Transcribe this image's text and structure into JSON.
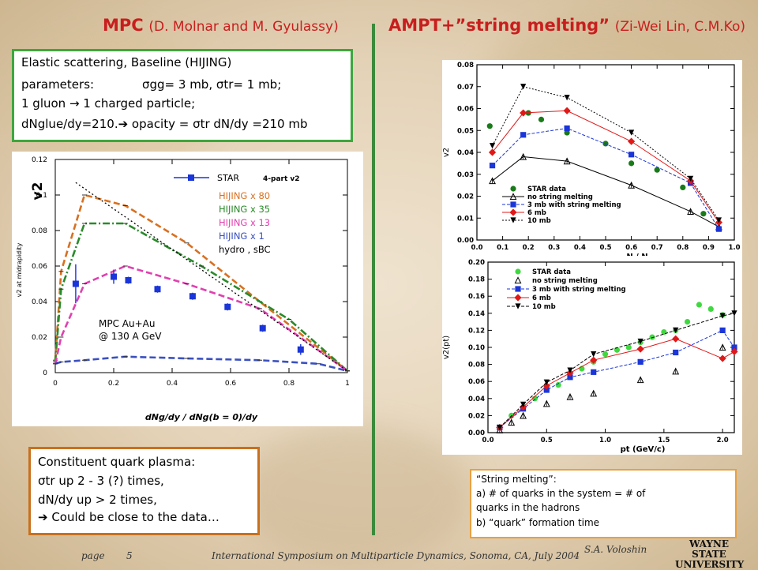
{
  "left_title": {
    "main": "MPC",
    "sub": "(D. Molnar and M. Gyulassy)"
  },
  "right_title": {
    "main": "AMPT+”string melting”",
    "sub": "(Zi-Wei Lin, C.M.Ko)"
  },
  "colors": {
    "title_red": "#c81e1e",
    "divider_green": "#3c8a3c",
    "box_green": "#3ea63e",
    "box_orange": "#c8701e",
    "box_note": "#e8a040"
  },
  "mpc_box": {
    "line1": "Elastic scattering, Baseline (HIJING)",
    "line2_a": "parameters:",
    "line2_b": "σgg= 3 mb, σtr= 1 mb;",
    "line3": "1 gluon → 1 charged particle;",
    "line4": "dNglue/dy=210.➔ opacity = σtr dN/dy =210 mb"
  },
  "cqp_box": {
    "line1": "Constituent quark plasma:",
    "line2": "σtr up 2 - 3 (?) times,",
    "line3": "dN/dy up > 2 times,",
    "line4": "➔ Could be close to the data…"
  },
  "sm_box": {
    "line1": "“String melting”:",
    "line2": "a) # of quarks in the system  =  # of",
    "line3": "quarks in the hadrons",
    "line4": " b) “quark” formation time"
  },
  "footer": {
    "page_label": "page",
    "page_num": "5",
    "conference": "International Symposium on Multiparticle Dynamics, Sonoma, CA, July 2004",
    "author": "S.A. Voloshin",
    "logo_line1": "WAYNE STATE",
    "logo_line2": "UNIVERSITY"
  },
  "chart_data": [
    {
      "type": "line",
      "ylabel": "v2 at midrapidity",
      "ylabel_big": "v2",
      "xlabel": "dNg/dy / dNg(b = 0)/dy",
      "xlim": [
        0,
        1
      ],
      "ylim": [
        0,
        0.12
      ],
      "x_ticks": [
        "0",
        "0.2",
        "0.4",
        "0.6",
        "0.8",
        "1"
      ],
      "y_ticks": [
        "0",
        "0.02",
        "0.04",
        "0.06",
        "0.08",
        "0.1",
        "0.12"
      ],
      "annotation_line1": "MPC Au+Au",
      "annotation_line2": "@ 130 A GeV",
      "legend": {
        "star_label": "STAR",
        "star_note": "4-part v2",
        "entries": [
          {
            "label": "HIJING x 80",
            "color": "#d87020"
          },
          {
            "label": "HIJING x 35",
            "color": "#2a8a2a"
          },
          {
            "label": "HIJING x 13",
            "color": "#e040b0"
          },
          {
            "label": "HIJING x 1",
            "color": "#3a50c0"
          },
          {
            "label": "hydro , sBC",
            "color": "#000000"
          }
        ]
      },
      "series": [
        {
          "name": "HIJING x 80",
          "color": "#d87020",
          "style": "dash",
          "x": [
            0,
            0.02,
            0.1,
            0.24,
            0.45,
            0.7,
            1.0
          ],
          "y": [
            0.007,
            0.057,
            0.1,
            0.094,
            0.073,
            0.04,
            0.001
          ]
        },
        {
          "name": "HIJING x 35",
          "color": "#2a8a2a",
          "style": "dashdot",
          "x": [
            0,
            0.02,
            0.1,
            0.24,
            0.5,
            0.8,
            1.0
          ],
          "y": [
            0.006,
            0.047,
            0.084,
            0.084,
            0.06,
            0.03,
            0.001
          ]
        },
        {
          "name": "HIJING x 13",
          "color": "#e040b0",
          "style": "dash",
          "x": [
            0,
            0.02,
            0.1,
            0.24,
            0.45,
            0.7,
            1.0
          ],
          "y": [
            0.005,
            0.02,
            0.05,
            0.06,
            0.05,
            0.036,
            0.001
          ]
        },
        {
          "name": "HIJING x 1",
          "color": "#3a50c0",
          "style": "dash",
          "x": [
            0,
            0.02,
            0.1,
            0.24,
            0.45,
            0.7,
            0.9,
            1.0
          ],
          "y": [
            0.005,
            0.006,
            0.007,
            0.009,
            0.008,
            0.007,
            0.005,
            0.001
          ]
        },
        {
          "name": "hydro , sBC",
          "color": "#000000",
          "style": "dotted",
          "x": [
            0.07,
            1.0
          ],
          "y": [
            0.107,
            0.001
          ]
        }
      ],
      "star_points": {
        "x": [
          0.07,
          0.2,
          0.25,
          0.35,
          0.47,
          0.59,
          0.71,
          0.84
        ],
        "y": [
          0.05,
          0.054,
          0.052,
          0.047,
          0.043,
          0.037,
          0.025,
          0.013
        ],
        "err": [
          0.011,
          0.004,
          0.002,
          0.002,
          0.002,
          0.002,
          0.002,
          0.003
        ]
      }
    },
    {
      "type": "line",
      "ylabel": "v2",
      "xlabel": "N / N",
      "xlim": [
        0,
        1
      ],
      "ylim": [
        0,
        0.08
      ],
      "x_ticks": [
        "0.0",
        "0.1",
        "0.2",
        "0.3",
        "0.4",
        "0.5",
        "0.6",
        "0.7",
        "0.8",
        "0.9",
        "1.0"
      ],
      "y_ticks": [
        "0.00",
        "0.01",
        "0.02",
        "0.03",
        "0.04",
        "0.05",
        "0.06",
        "0.07",
        "0.08"
      ],
      "legend": [
        "STAR data",
        "no string melting",
        "3 mb with string melting",
        "6 mb",
        "10 mb"
      ],
      "series": [
        {
          "name": "STAR data",
          "color": "#1a7a1a",
          "marker": "circle",
          "line": "none",
          "x": [
            0.05,
            0.2,
            0.25,
            0.35,
            0.5,
            0.6,
            0.7,
            0.8,
            0.88
          ],
          "y": [
            0.052,
            0.058,
            0.055,
            0.049,
            0.044,
            0.035,
            0.032,
            0.024,
            0.012
          ]
        },
        {
          "name": "no string melting",
          "color": "#000000",
          "marker": "triangle-up",
          "line": "solid",
          "x": [
            0.06,
            0.18,
            0.35,
            0.6,
            0.83,
            0.94
          ],
          "y": [
            0.027,
            0.038,
            0.036,
            0.025,
            0.013,
            0.006
          ]
        },
        {
          "name": "3 mb with string melting",
          "color": "#1a35d8",
          "marker": "square",
          "line": "dash",
          "x": [
            0.06,
            0.18,
            0.35,
            0.6,
            0.83,
            0.94
          ],
          "y": [
            0.034,
            0.048,
            0.051,
            0.039,
            0.026,
            0.005
          ]
        },
        {
          "name": "6 mb",
          "color": "#e01818",
          "marker": "diamond",
          "line": "solid",
          "x": [
            0.06,
            0.18,
            0.35,
            0.6,
            0.83,
            0.94
          ],
          "y": [
            0.04,
            0.058,
            0.059,
            0.045,
            0.027,
            0.008
          ]
        },
        {
          "name": "10 mb",
          "color": "#000000",
          "marker": "triangle-down",
          "line": "dotted",
          "x": [
            0.06,
            0.18,
            0.35,
            0.6,
            0.83,
            0.94
          ],
          "y": [
            0.043,
            0.07,
            0.065,
            0.049,
            0.028,
            0.009
          ]
        }
      ]
    },
    {
      "type": "line",
      "ylabel": "v2(pt)",
      "xlabel": "pt (GeV/c)",
      "xlim": [
        0,
        2.1
      ],
      "ylim": [
        0,
        0.2
      ],
      "x_ticks": [
        "0.0",
        "0.5",
        "1.0",
        "1.5",
        "2.0"
      ],
      "y_ticks": [
        "0.00",
        "0.02",
        "0.04",
        "0.06",
        "0.08",
        "0.10",
        "0.12",
        "0.14",
        "0.16",
        "0.18",
        "0.20"
      ],
      "legend": [
        "STAR data",
        "no string melting",
        "3 mb with string melting",
        "6 mb",
        "10 mb"
      ],
      "series": [
        {
          "name": "STAR data",
          "color": "#40d840",
          "marker": "circle",
          "line": "none",
          "x": [
            0.2,
            0.3,
            0.4,
            0.5,
            0.6,
            0.7,
            0.8,
            0.9,
            1.0,
            1.1,
            1.2,
            1.3,
            1.4,
            1.5,
            1.6,
            1.7,
            1.8,
            1.9,
            2.0
          ],
          "y": [
            0.02,
            0.03,
            0.04,
            0.05,
            0.056,
            0.065,
            0.075,
            0.083,
            0.092,
            0.097,
            0.1,
            0.106,
            0.112,
            0.118,
            0.12,
            0.13,
            0.15,
            0.145,
            0.138
          ]
        },
        {
          "name": "no string melting",
          "color": "#000000",
          "marker": "triangle-up",
          "line": "none",
          "x": [
            0.1,
            0.2,
            0.3,
            0.5,
            0.7,
            0.9,
            1.3,
            1.6,
            2.0
          ],
          "y": [
            0.003,
            0.012,
            0.02,
            0.034,
            0.042,
            0.046,
            0.062,
            0.072,
            0.1
          ]
        },
        {
          "name": "3 mb with string melting",
          "color": "#1a35d8",
          "marker": "square",
          "line": "dash",
          "x": [
            0.1,
            0.3,
            0.5,
            0.7,
            0.9,
            1.3,
            1.6,
            2.0,
            2.1
          ],
          "y": [
            0.006,
            0.028,
            0.05,
            0.065,
            0.071,
            0.083,
            0.094,
            0.12,
            0.1
          ]
        },
        {
          "name": "6 mb",
          "color": "#e01818",
          "marker": "diamond",
          "line": "solid",
          "x": [
            0.1,
            0.3,
            0.5,
            0.7,
            0.9,
            1.3,
            1.6,
            2.0,
            2.1
          ],
          "y": [
            0.006,
            0.03,
            0.055,
            0.07,
            0.085,
            0.098,
            0.11,
            0.087,
            0.095
          ]
        },
        {
          "name": "10 mb",
          "color": "#000000",
          "marker": "triangle-down",
          "line": "dash",
          "x": [
            0.1,
            0.3,
            0.5,
            0.7,
            0.9,
            1.3,
            1.6,
            2.0,
            2.1
          ],
          "y": [
            0.006,
            0.033,
            0.059,
            0.073,
            0.092,
            0.107,
            0.12,
            0.137,
            0.14
          ]
        }
      ]
    }
  ]
}
